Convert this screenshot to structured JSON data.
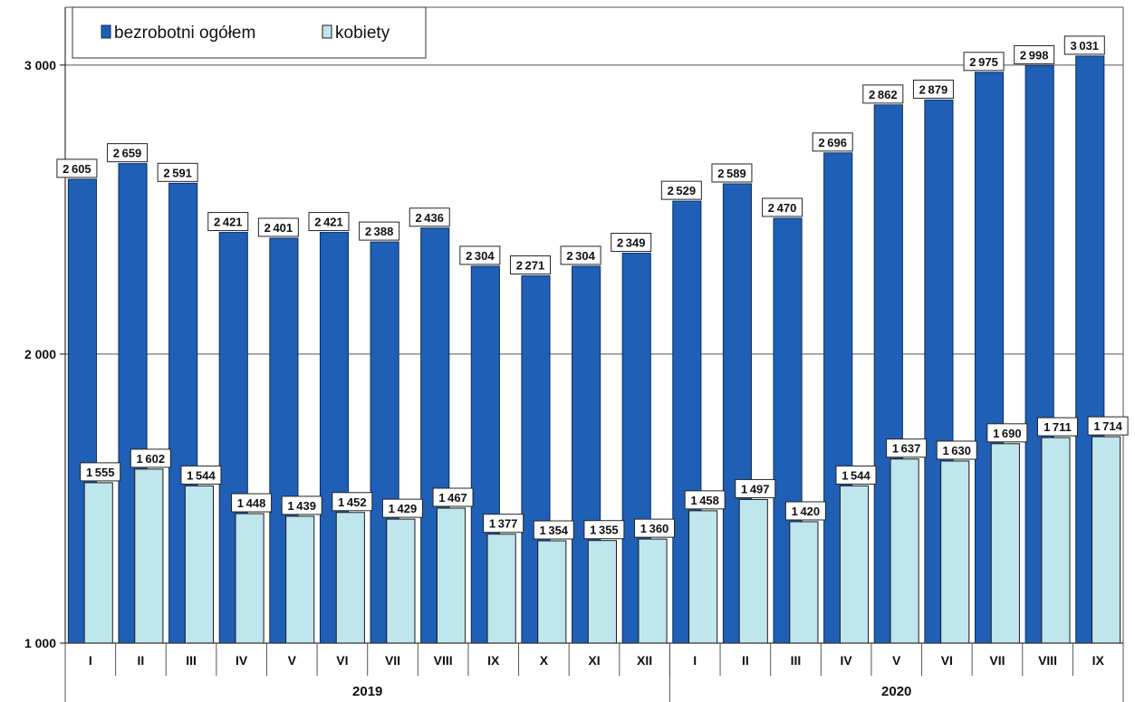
{
  "chart_data": {
    "type": "bar",
    "categories": [
      "I",
      "II",
      "III",
      "IV",
      "V",
      "VI",
      "VII",
      "VIII",
      "IX",
      "X",
      "XI",
      "XII",
      "I",
      "II",
      "III",
      "IV",
      "V",
      "VI",
      "VII",
      "VIII",
      "IX"
    ],
    "groups": [
      {
        "label": "2019",
        "count": 12
      },
      {
        "label": "2020",
        "count": 9
      }
    ],
    "series": [
      {
        "name": "bezrobotni ogółem",
        "color": "#1f5fb5",
        "values": [
          2605,
          2659,
          2591,
          2421,
          2401,
          2421,
          2388,
          2436,
          2304,
          2271,
          2304,
          2349,
          2529,
          2589,
          2470,
          2696,
          2862,
          2879,
          2975,
          2998,
          3031
        ]
      },
      {
        "name": "kobiety",
        "color": "#bfe6ec",
        "values": [
          1555,
          1602,
          1544,
          1448,
          1439,
          1452,
          1429,
          1467,
          1377,
          1354,
          1355,
          1360,
          1458,
          1497,
          1420,
          1544,
          1637,
          1630,
          1690,
          1711,
          1714
        ]
      }
    ],
    "ylim": [
      1000,
      3200
    ],
    "yticks": [
      1000,
      2000,
      3000
    ],
    "ytick_labels": [
      "1 000",
      "2 000",
      "3 000"
    ],
    "grid": true,
    "legend_position": "top-left"
  }
}
